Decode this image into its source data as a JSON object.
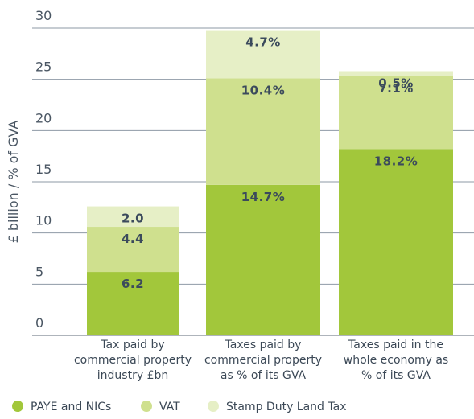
{
  "chart_data": {
    "type": "stacked_bar",
    "y_axis_label": "£ billion / % of GVA",
    "categories": [
      [
        "Tax paid by",
        "commercial property",
        "industry £bn"
      ],
      [
        "Taxes paid by",
        "commercial property",
        "as % of its GVA"
      ],
      [
        "Taxes paid in the",
        "whole economy as",
        "% of its GVA"
      ]
    ],
    "series": [
      {
        "name": "PAYE and NICs",
        "color": "#a2c73b",
        "values": [
          6.2,
          14.7,
          18.2
        ],
        "value_labels": [
          "6.2",
          "14.7%",
          "18.2%"
        ]
      },
      {
        "name": "VAT",
        "color": "#cfe08e",
        "values": [
          4.4,
          10.4,
          7.1
        ],
        "value_labels": [
          "4.4",
          "10.4%",
          "7.1%"
        ]
      },
      {
        "name": "Stamp Duty Land Tax",
        "color": "#e6efc6",
        "values": [
          2.0,
          4.7,
          0.5
        ],
        "value_labels": [
          "2.0",
          "4.7%",
          "0.5%"
        ]
      }
    ],
    "ylim": [
      0,
      30
    ],
    "yticks": [
      0,
      5,
      10,
      15,
      20,
      25,
      30
    ],
    "grid": true,
    "legend": "bottom"
  }
}
